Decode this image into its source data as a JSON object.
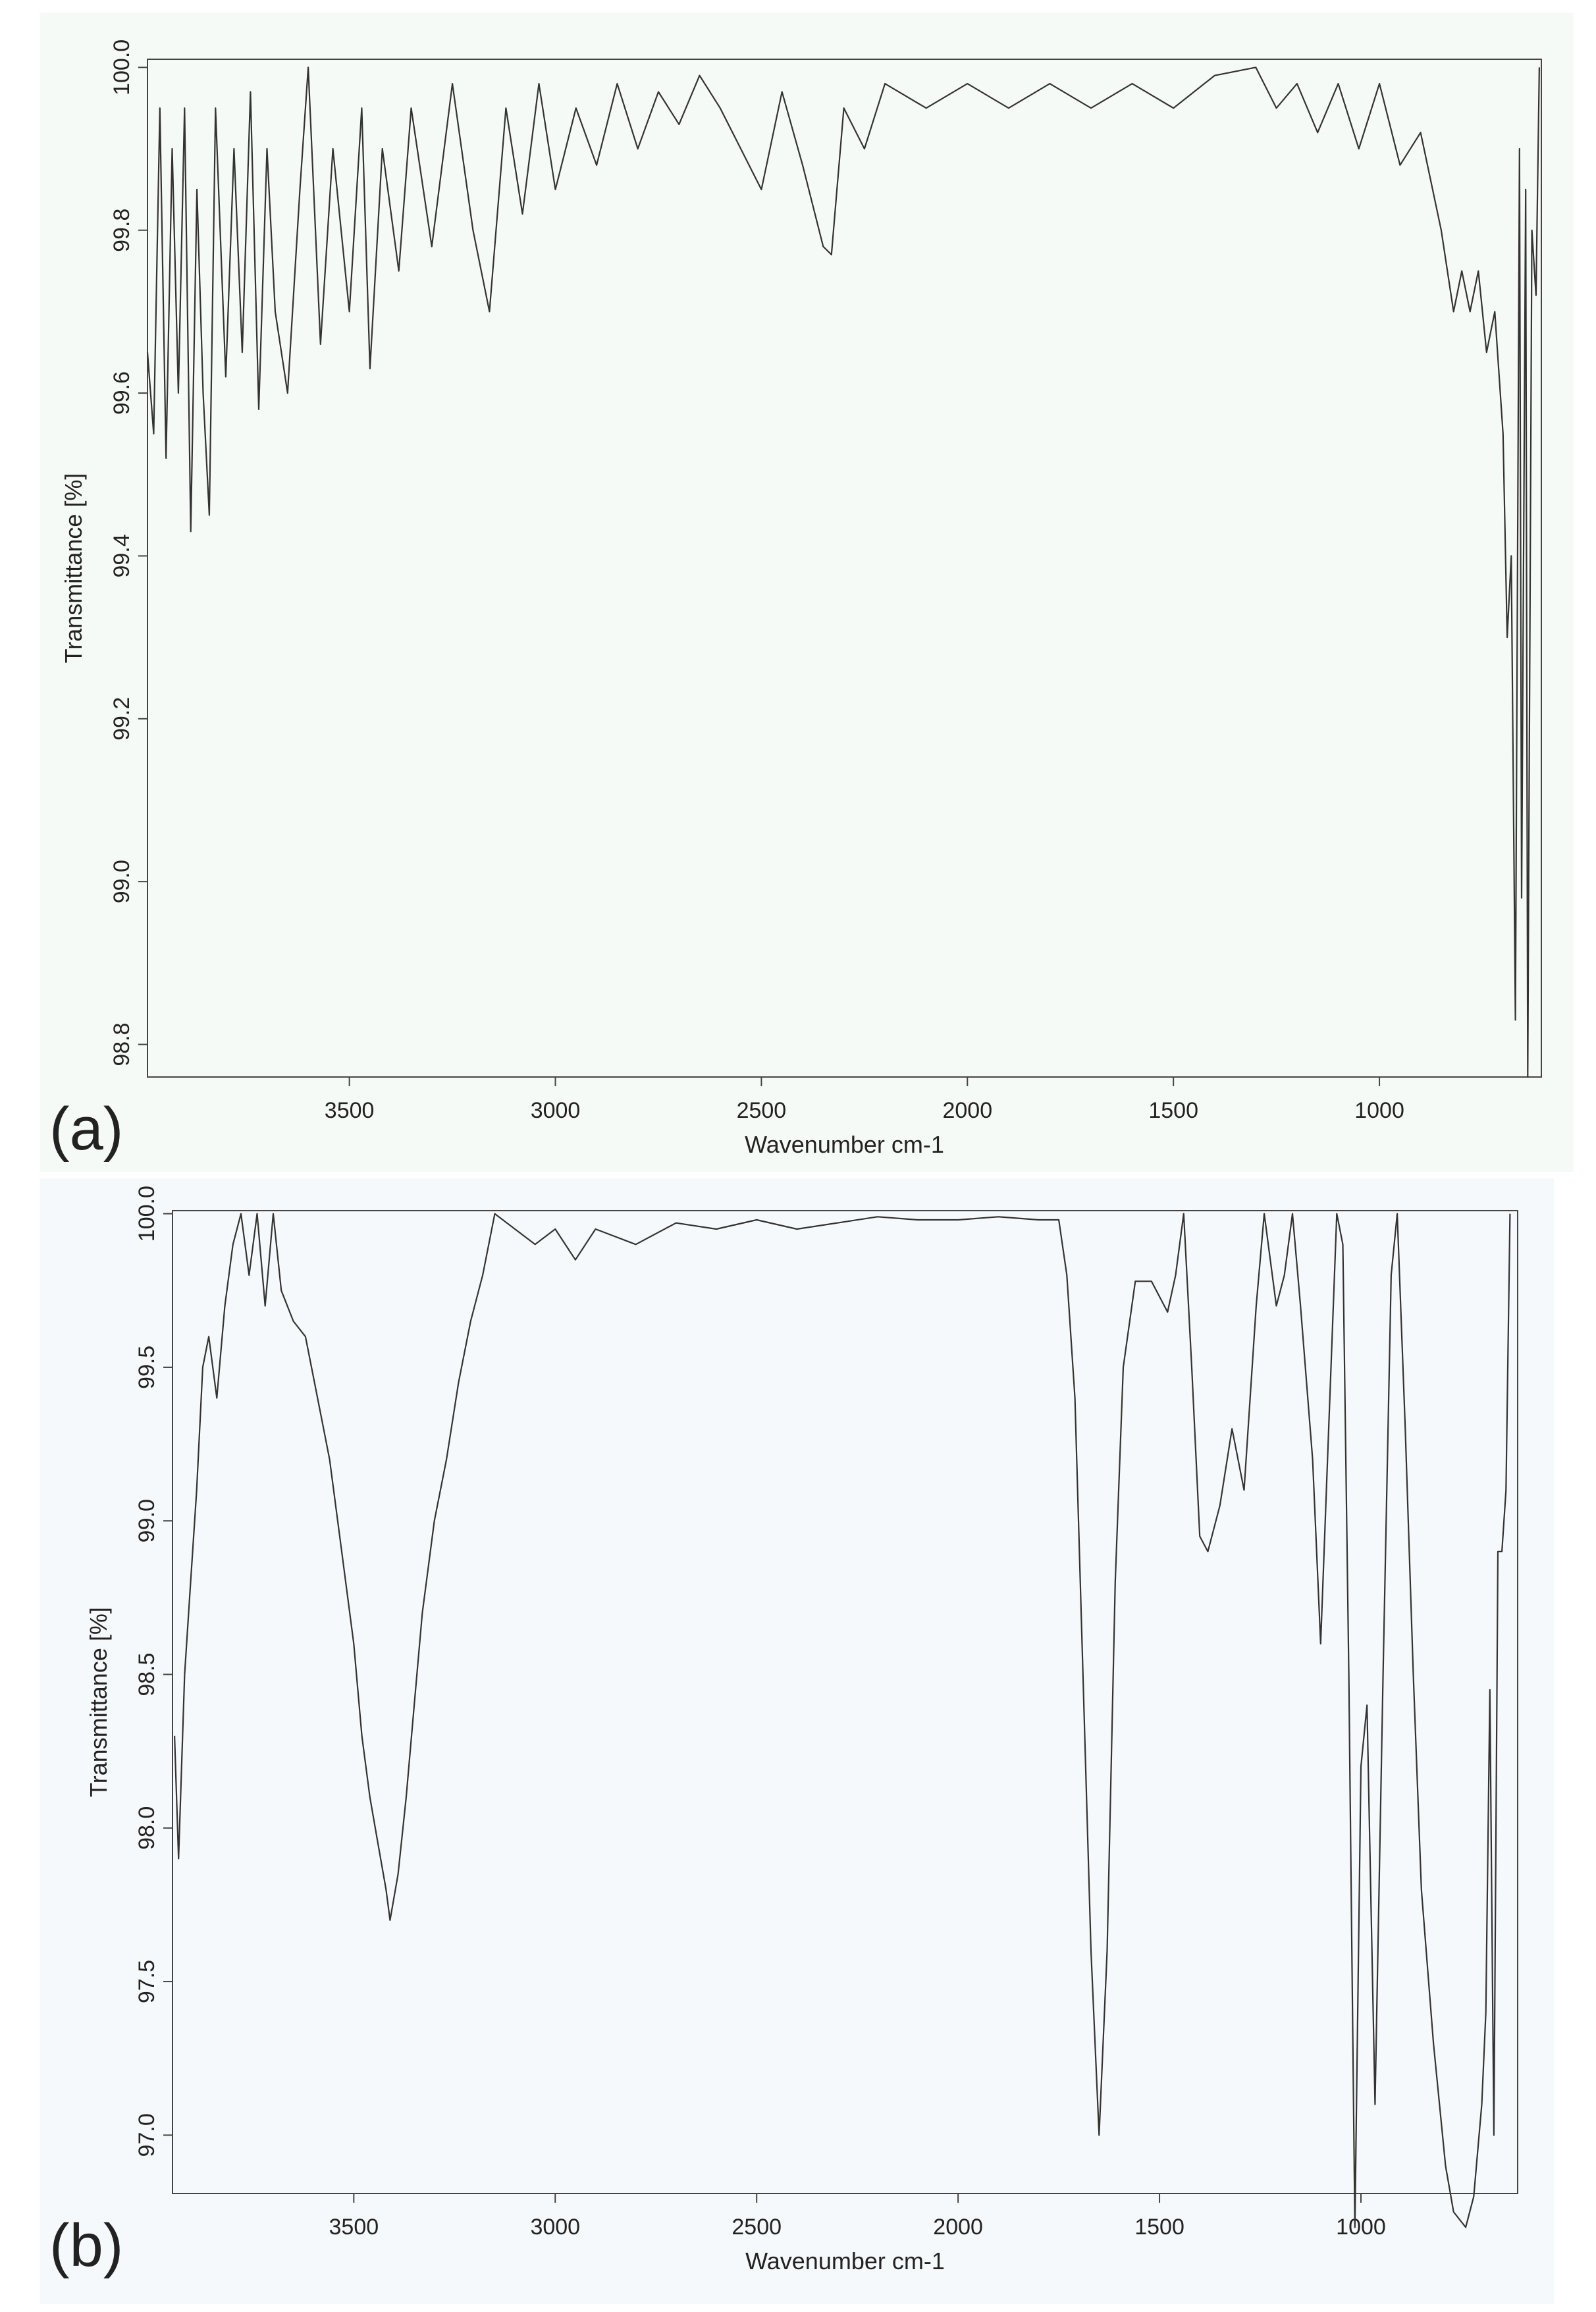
{
  "chart_data": [
    {
      "type": "line",
      "label": "(a)",
      "x_label": "Wavenumber cm-1",
      "y_label": "Transmittance [%]",
      "color": "#333333",
      "background": "#f6faf6",
      "xlim": [
        3990,
        607
      ],
      "xticks": [
        3500,
        3000,
        2500,
        2000,
        1500,
        1000
      ],
      "ylim": [
        98.76,
        100.01
      ],
      "yticks": [
        98.8,
        {
          "value": 99.0,
          "label": "99.0"
        },
        99.2,
        99.4,
        99.6,
        99.8,
        {
          "value": 100.0,
          "label": "100.0"
        }
      ],
      "x": [
        3990,
        3975,
        3960,
        3945,
        3930,
        3915,
        3900,
        3885,
        3870,
        3855,
        3840,
        3825,
        3800,
        3780,
        3760,
        3740,
        3720,
        3700,
        3680,
        3650,
        3620,
        3600,
        3570,
        3540,
        3500,
        3470,
        3450,
        3420,
        3380,
        3350,
        3300,
        3250,
        3200,
        3160,
        3120,
        3080,
        3040,
        3000,
        2950,
        2900,
        2850,
        2800,
        2750,
        2700,
        2650,
        2600,
        2550,
        2500,
        2450,
        2400,
        2350,
        2330,
        2300,
        2250,
        2200,
        2100,
        2000,
        1900,
        1800,
        1700,
        1600,
        1500,
        1400,
        1300,
        1250,
        1200,
        1150,
        1100,
        1050,
        1000,
        950,
        900,
        850,
        820,
        800,
        780,
        760,
        740,
        720,
        700,
        690,
        680,
        670,
        660,
        655,
        645,
        640,
        630,
        620,
        612
      ],
      "values": [
        99.65,
        99.55,
        99.95,
        99.52,
        99.9,
        99.6,
        99.95,
        99.43,
        99.85,
        99.6,
        99.45,
        99.95,
        99.62,
        99.9,
        99.65,
        99.97,
        99.58,
        99.9,
        99.7,
        99.6,
        99.85,
        100.0,
        99.66,
        99.9,
        99.7,
        99.95,
        99.63,
        99.9,
        99.75,
        99.95,
        99.78,
        99.98,
        99.8,
        99.7,
        99.95,
        99.82,
        99.98,
        99.85,
        99.95,
        99.88,
        99.98,
        99.9,
        99.97,
        99.93,
        99.99,
        99.95,
        99.9,
        99.85,
        99.97,
        99.88,
        99.78,
        99.77,
        99.95,
        99.9,
        99.98,
        99.95,
        99.98,
        99.95,
        99.98,
        99.95,
        99.98,
        99.95,
        99.99,
        100.0,
        99.95,
        99.98,
        99.92,
        99.98,
        99.9,
        99.98,
        99.88,
        99.92,
        99.8,
        99.7,
        99.75,
        99.7,
        99.75,
        99.65,
        99.7,
        99.55,
        99.3,
        99.4,
        98.83,
        99.9,
        98.98,
        99.85,
        98.76,
        99.8,
        99.72,
        100.0
      ]
    },
    {
      "type": "line",
      "label": "(b)",
      "x_label": "Wavenumber cm-1",
      "y_label": "Transmittance [%]",
      "color": "#333333",
      "background": "#f6f9fb",
      "xlim": [
        3950,
        611
      ],
      "xticks": [
        3500,
        3000,
        2500,
        2000,
        1500,
        1000
      ],
      "ylim": [
        96.81,
        100.01
      ],
      "yticks": [
        {
          "value": 97.0,
          "label": "97.0"
        },
        97.5,
        {
          "value": 98.0,
          "label": "98.0"
        },
        98.5,
        {
          "value": 99.0,
          "label": "99.0"
        },
        99.5,
        {
          "value": 100.0,
          "label": "100.0"
        }
      ],
      "x": [
        3945,
        3935,
        3920,
        3905,
        3890,
        3875,
        3860,
        3840,
        3820,
        3800,
        3780,
        3760,
        3740,
        3720,
        3700,
        3680,
        3650,
        3620,
        3590,
        3560,
        3530,
        3500,
        3480,
        3460,
        3440,
        3420,
        3410,
        3390,
        3370,
        3350,
        3330,
        3300,
        3270,
        3240,
        3210,
        3180,
        3150,
        3100,
        3050,
        3000,
        2950,
        2900,
        2800,
        2700,
        2600,
        2500,
        2400,
        2300,
        2200,
        2100,
        2000,
        1900,
        1800,
        1750,
        1730,
        1710,
        1690,
        1670,
        1650,
        1630,
        1610,
        1590,
        1560,
        1520,
        1480,
        1460,
        1440,
        1420,
        1400,
        1380,
        1350,
        1320,
        1290,
        1260,
        1240,
        1210,
        1190,
        1170,
        1150,
        1120,
        1100,
        1080,
        1060,
        1045,
        1030,
        1015,
        1000,
        985,
        965,
        945,
        925,
        910,
        890,
        870,
        850,
        820,
        790,
        770,
        740,
        720,
        700,
        690,
        680,
        670,
        660,
        650,
        640,
        630
      ],
      "values": [
        98.3,
        97.9,
        98.5,
        98.8,
        99.1,
        99.5,
        99.6,
        99.4,
        99.7,
        99.9,
        100.0,
        99.8,
        100.0,
        99.7,
        100.0,
        99.75,
        99.65,
        99.6,
        99.4,
        99.2,
        98.9,
        98.6,
        98.3,
        98.1,
        97.95,
        97.8,
        97.7,
        97.85,
        98.1,
        98.4,
        98.7,
        99.0,
        99.2,
        99.45,
        99.65,
        99.8,
        100.0,
        99.95,
        99.9,
        99.95,
        99.85,
        99.95,
        99.9,
        99.97,
        99.95,
        99.98,
        99.95,
        99.97,
        99.99,
        99.98,
        99.98,
        99.99,
        99.98,
        99.98,
        99.8,
        99.4,
        98.5,
        97.6,
        97.0,
        97.6,
        98.8,
        99.5,
        99.78,
        99.78,
        99.68,
        99.8,
        100.0,
        99.5,
        98.95,
        98.9,
        99.05,
        99.3,
        99.1,
        99.7,
        100.0,
        99.7,
        99.8,
        100.0,
        99.7,
        99.2,
        98.6,
        99.3,
        100.0,
        99.9,
        98.5,
        96.7,
        98.2,
        98.4,
        97.1,
        98.5,
        99.8,
        100.0,
        99.3,
        98.5,
        97.8,
        97.3,
        96.9,
        96.75,
        96.7,
        96.8,
        97.1,
        97.4,
        98.45,
        97.0,
        98.9,
        98.9,
        99.1,
        100.0
      ]
    }
  ]
}
